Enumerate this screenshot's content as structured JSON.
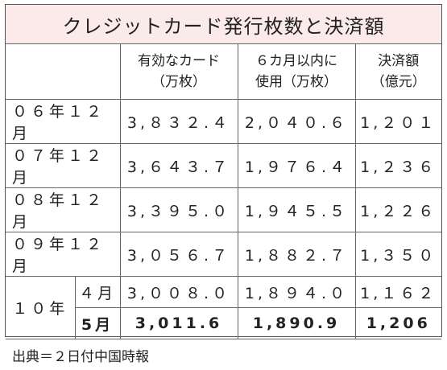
{
  "title": "クレジットカード発行枚数と決済額",
  "headers": {
    "col1": [
      "有効なカード",
      "（万枚）"
    ],
    "col2": [
      "６カ月以内に",
      "使用（万枚）"
    ],
    "col3": [
      "決済額",
      "（億元）"
    ]
  },
  "rows": [
    {
      "label": "０６年１２月",
      "cards": "3,８３２.４",
      "used": "2,０４０.６",
      "amount": "1,２０１"
    },
    {
      "label": "０７年１２月",
      "cards": "3,６４３.７",
      "used": "1,９７６.４",
      "amount": "1,２３６"
    },
    {
      "label": "０８年１２月",
      "cards": "3,３９５.０",
      "used": "1,９４５.５",
      "amount": "1,２２６"
    },
    {
      "label": "０９年１２月",
      "cards": "3,０５６.７",
      "used": "1,８８２.７",
      "amount": "1,３５０"
    }
  ],
  "year10": {
    "label": "１０年",
    "months": [
      {
        "month": "４月",
        "cards": "3,００８.０",
        "used": "1,８９４.０",
        "amount": "1,１６２"
      },
      {
        "month": "5月",
        "cards": "3,011.6",
        "used": "1,890.9",
        "amount": "1,206"
      }
    ]
  },
  "source": "出典＝２日付中国時報"
}
